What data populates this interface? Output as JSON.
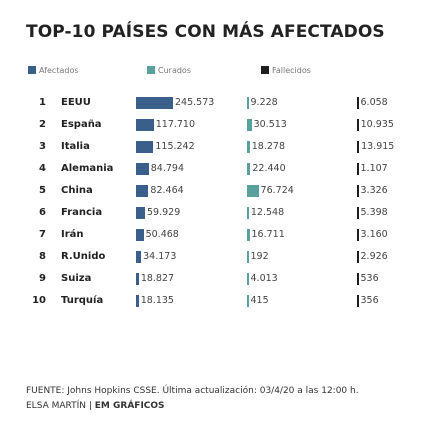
{
  "title": "TOP-10 PAÍSES CON MÁS AFECTADOS",
  "colors": {
    "afectados": "#3a5f8a",
    "curados": "#5aa19e",
    "fallecidos": "#1e1e1e"
  },
  "footer": {
    "source": "FUENTE: Johns Hopkins CSSE. Última actualización: 03/4/20 a las 12:00 h.",
    "author": "ELSA MARTÍN",
    "separator": " | ",
    "brand": "EM GRÁFICOS"
  },
  "chart_data": {
    "type": "bar",
    "title": "TOP-10 PAÍSES CON MÁS AFECTADOS",
    "categories": [
      "EEUU",
      "España",
      "Italia",
      "Alemania",
      "China",
      "Francia",
      "Irán",
      "R.Unido",
      "Suiza",
      "Turquía"
    ],
    "ranks": [
      "1",
      "2",
      "3",
      "4",
      "5",
      "6",
      "7",
      "8",
      "9",
      "10"
    ],
    "series": [
      {
        "name": "Afectados",
        "values": [
          245573,
          117710,
          115242,
          84794,
          82464,
          59929,
          50468,
          34173,
          18827,
          18135
        ],
        "labels": [
          "245.573",
          "117.710",
          "115.242",
          "84.794",
          "82.464",
          "59.929",
          "50.468",
          "34.173",
          "18.827",
          "18.135"
        ]
      },
      {
        "name": "Curados",
        "values": [
          9228,
          30513,
          18278,
          22440,
          76724,
          12548,
          16711,
          192,
          4013,
          415
        ],
        "labels": [
          "9.228",
          "30.513",
          "18.278",
          "22.440",
          "76.724",
          "12.548",
          "16.711",
          "192",
          "4.013",
          "415"
        ]
      },
      {
        "name": "Fallecidos",
        "values": [
          6058,
          10935,
          13915,
          1107,
          3326,
          5398,
          3160,
          2926,
          536,
          356
        ],
        "labels": [
          "6.058",
          "10.935",
          "13.915",
          "1.107",
          "3.326",
          "5.398",
          "3.160",
          "2.926",
          "536",
          "356"
        ]
      }
    ]
  }
}
